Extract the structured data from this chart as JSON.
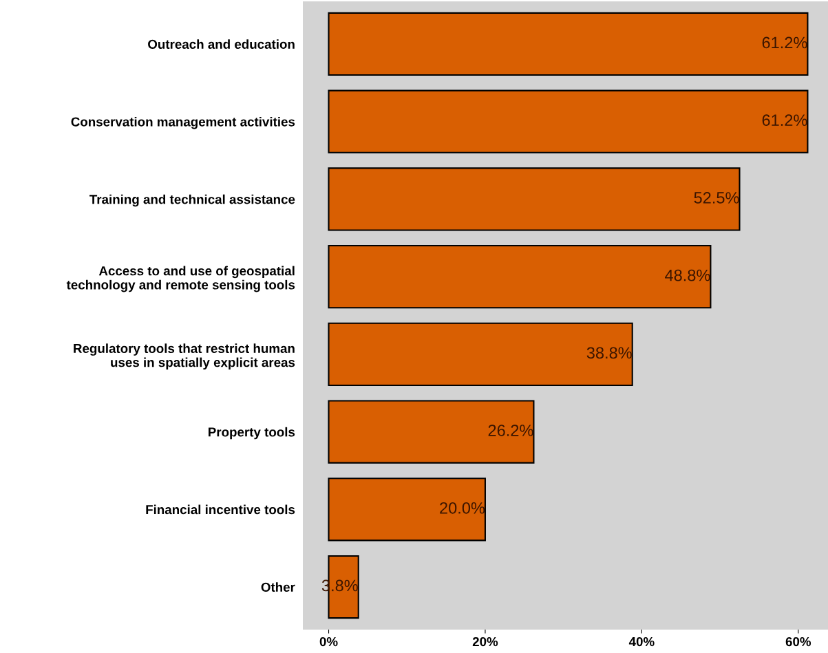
{
  "chart_data": {
    "type": "bar",
    "orientation": "horizontal",
    "categories": [
      "Outreach and education",
      "Conservation management activities",
      "Training and technical assistance",
      "Access to and use of geospatial\ntechnology and remote sensing tools",
      "Regulatory tools that restrict human\nuses in spatially explicit areas",
      "Property tools",
      "Financial incentive tools",
      "Other"
    ],
    "values": [
      61.2,
      61.2,
      52.5,
      48.8,
      38.8,
      26.2,
      20.0,
      3.8
    ],
    "value_labels": [
      "61.2%",
      "61.2%",
      "52.5%",
      "48.8%",
      "38.8%",
      "26.2%",
      "20.0%",
      "3.8%"
    ],
    "color": "#d95f02",
    "xlim": [
      -3.3,
      63.8
    ],
    "xticks": [
      {
        "value": 0,
        "label": "0%"
      },
      {
        "value": 20,
        "label": "20%"
      },
      {
        "value": 40,
        "label": "40%"
      },
      {
        "value": 60,
        "label": "60%"
      }
    ],
    "grid": false
  }
}
